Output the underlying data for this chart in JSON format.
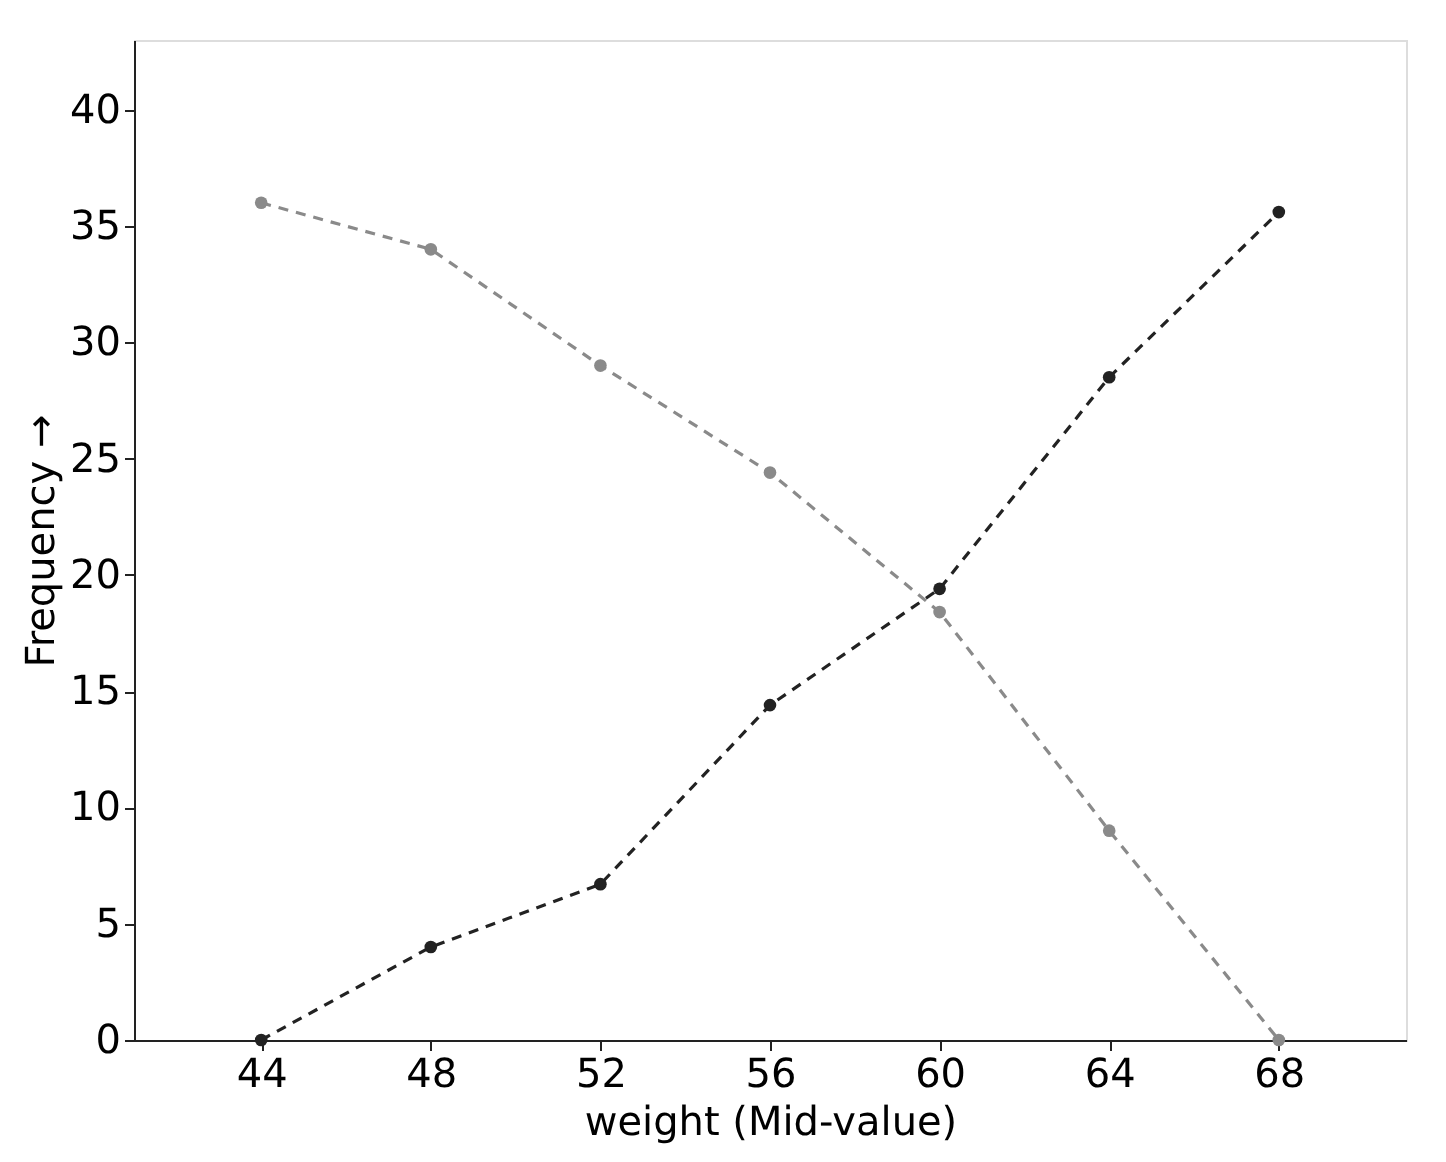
{
  "chart_data": {
    "type": "line",
    "xlabel": "weight (Mid-value)",
    "ylabel": "Frequency →",
    "x": [
      44,
      48,
      52,
      56,
      60,
      64,
      68
    ],
    "series": [
      {
        "color": "#8a8a8a",
        "values": [
          36,
          34,
          29,
          24.4,
          18.4,
          9,
          0
        ]
      },
      {
        "color": "#222222",
        "values": [
          0,
          4,
          6.7,
          14.4,
          19.4,
          28.5,
          35.6
        ]
      }
    ],
    "xlim": [
      41,
      71
    ],
    "ylim": [
      0,
      43
    ],
    "xticks": [
      44,
      48,
      52,
      56,
      60,
      64,
      68
    ],
    "yticks": [
      0,
      5,
      10,
      15,
      20,
      25,
      30,
      35,
      40
    ],
    "grid": false,
    "marker": "circle",
    "line_style": "dashed"
  }
}
